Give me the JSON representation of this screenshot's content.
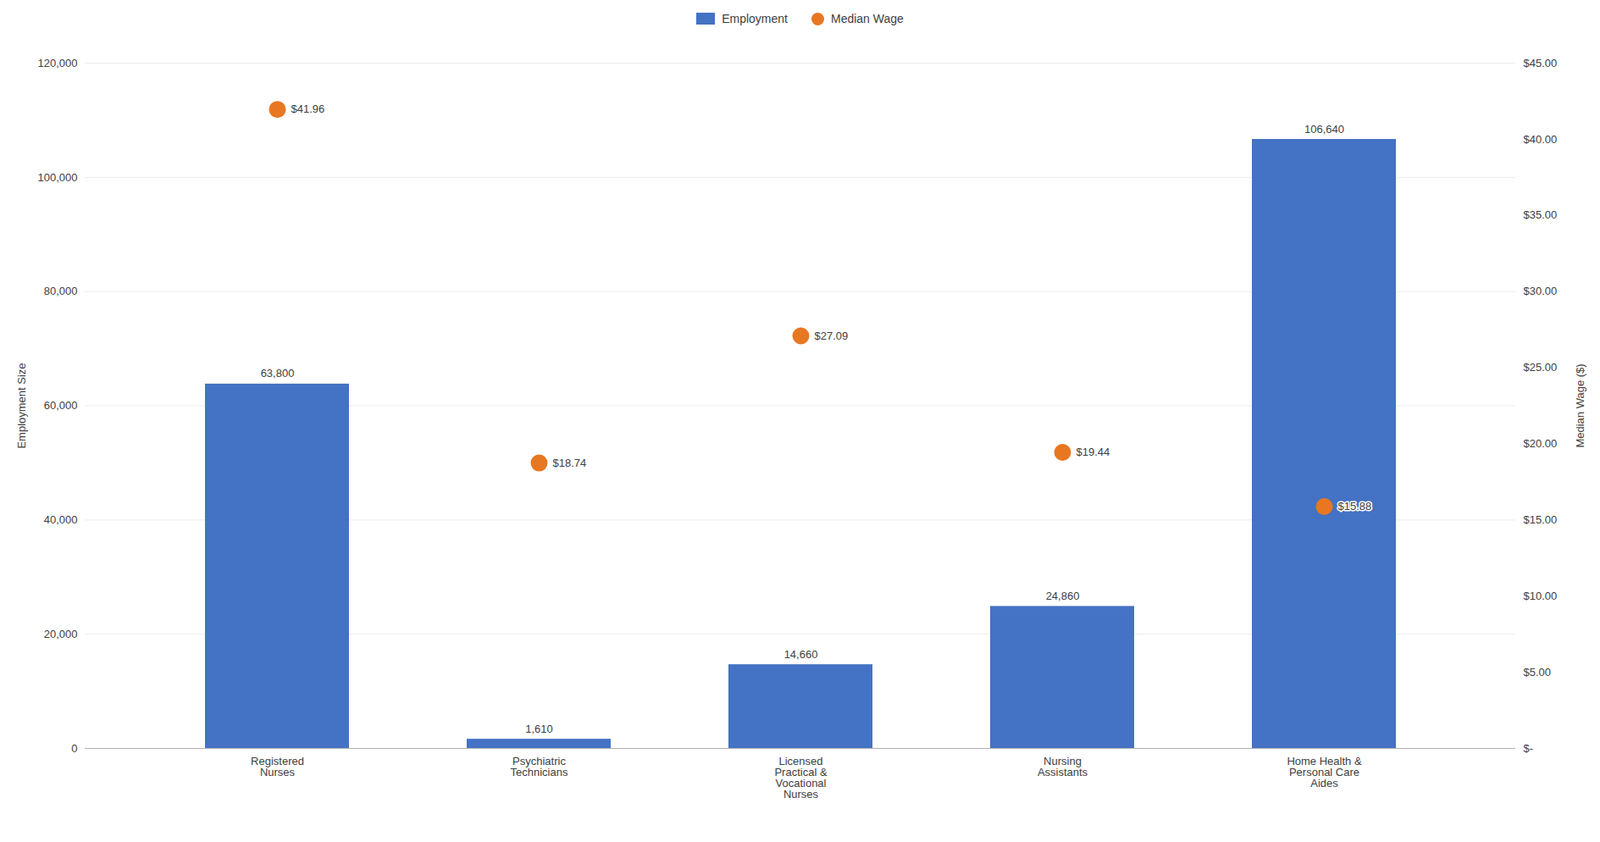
{
  "chart_data": {
    "type": "bar",
    "categories": [
      "Registered\nNurses",
      "Psychiatric\nTechnicians",
      "Licensed\nPractical &\nVocational\nNurses",
      "Nursing\nAssistants",
      "Home Health &\nPersonal Care\nAides"
    ],
    "series": [
      {
        "name": "Employment",
        "type": "bar",
        "color": "#4472C4",
        "values": [
          63800,
          1610,
          14660,
          24860,
          106640
        ],
        "value_labels": [
          "63,800",
          "1,610",
          "14,660",
          "24,860",
          "106,640"
        ]
      },
      {
        "name": "Median Wage",
        "type": "scatter",
        "axis": "y2",
        "color": "#E87722",
        "values": [
          41.96,
          18.74,
          27.09,
          19.44,
          15.88
        ],
        "value_labels": [
          "$41.96",
          "$18.74",
          "$27.09",
          "$19.44",
          "$15.88"
        ]
      }
    ],
    "ylabel": "Employment Size",
    "y2label": "Median Wage ($)",
    "ylim": [
      0,
      120000
    ],
    "yticks": [
      0,
      {
        "value": 20000,
        "label": "20,000"
      },
      {
        "value": 40000,
        "label": "40,000"
      },
      {
        "value": 60000,
        "label": "60,000"
      },
      {
        "value": 80000,
        "label": "80,000"
      },
      {
        "value": 100000,
        "label": "100,000"
      },
      {
        "value": 120000,
        "label": "120,000"
      }
    ],
    "y2lim": [
      0,
      45
    ],
    "y2ticks": [
      {
        "value": 0,
        "label": "$-"
      },
      {
        "value": 5,
        "label": "$5.00"
      },
      {
        "value": 10,
        "label": "$10.00"
      },
      {
        "value": 15,
        "label": "$15.00"
      },
      {
        "value": 20,
        "label": "$20.00"
      },
      {
        "value": 25,
        "label": "$25.00"
      },
      {
        "value": 30,
        "label": "$30.00"
      },
      {
        "value": 35,
        "label": "$35.00"
      },
      {
        "value": 40,
        "label": "$40.00"
      },
      {
        "value": 45,
        "label": "$45.00"
      }
    ],
    "grid": true,
    "legend": "top",
    "data_labels": true
  }
}
